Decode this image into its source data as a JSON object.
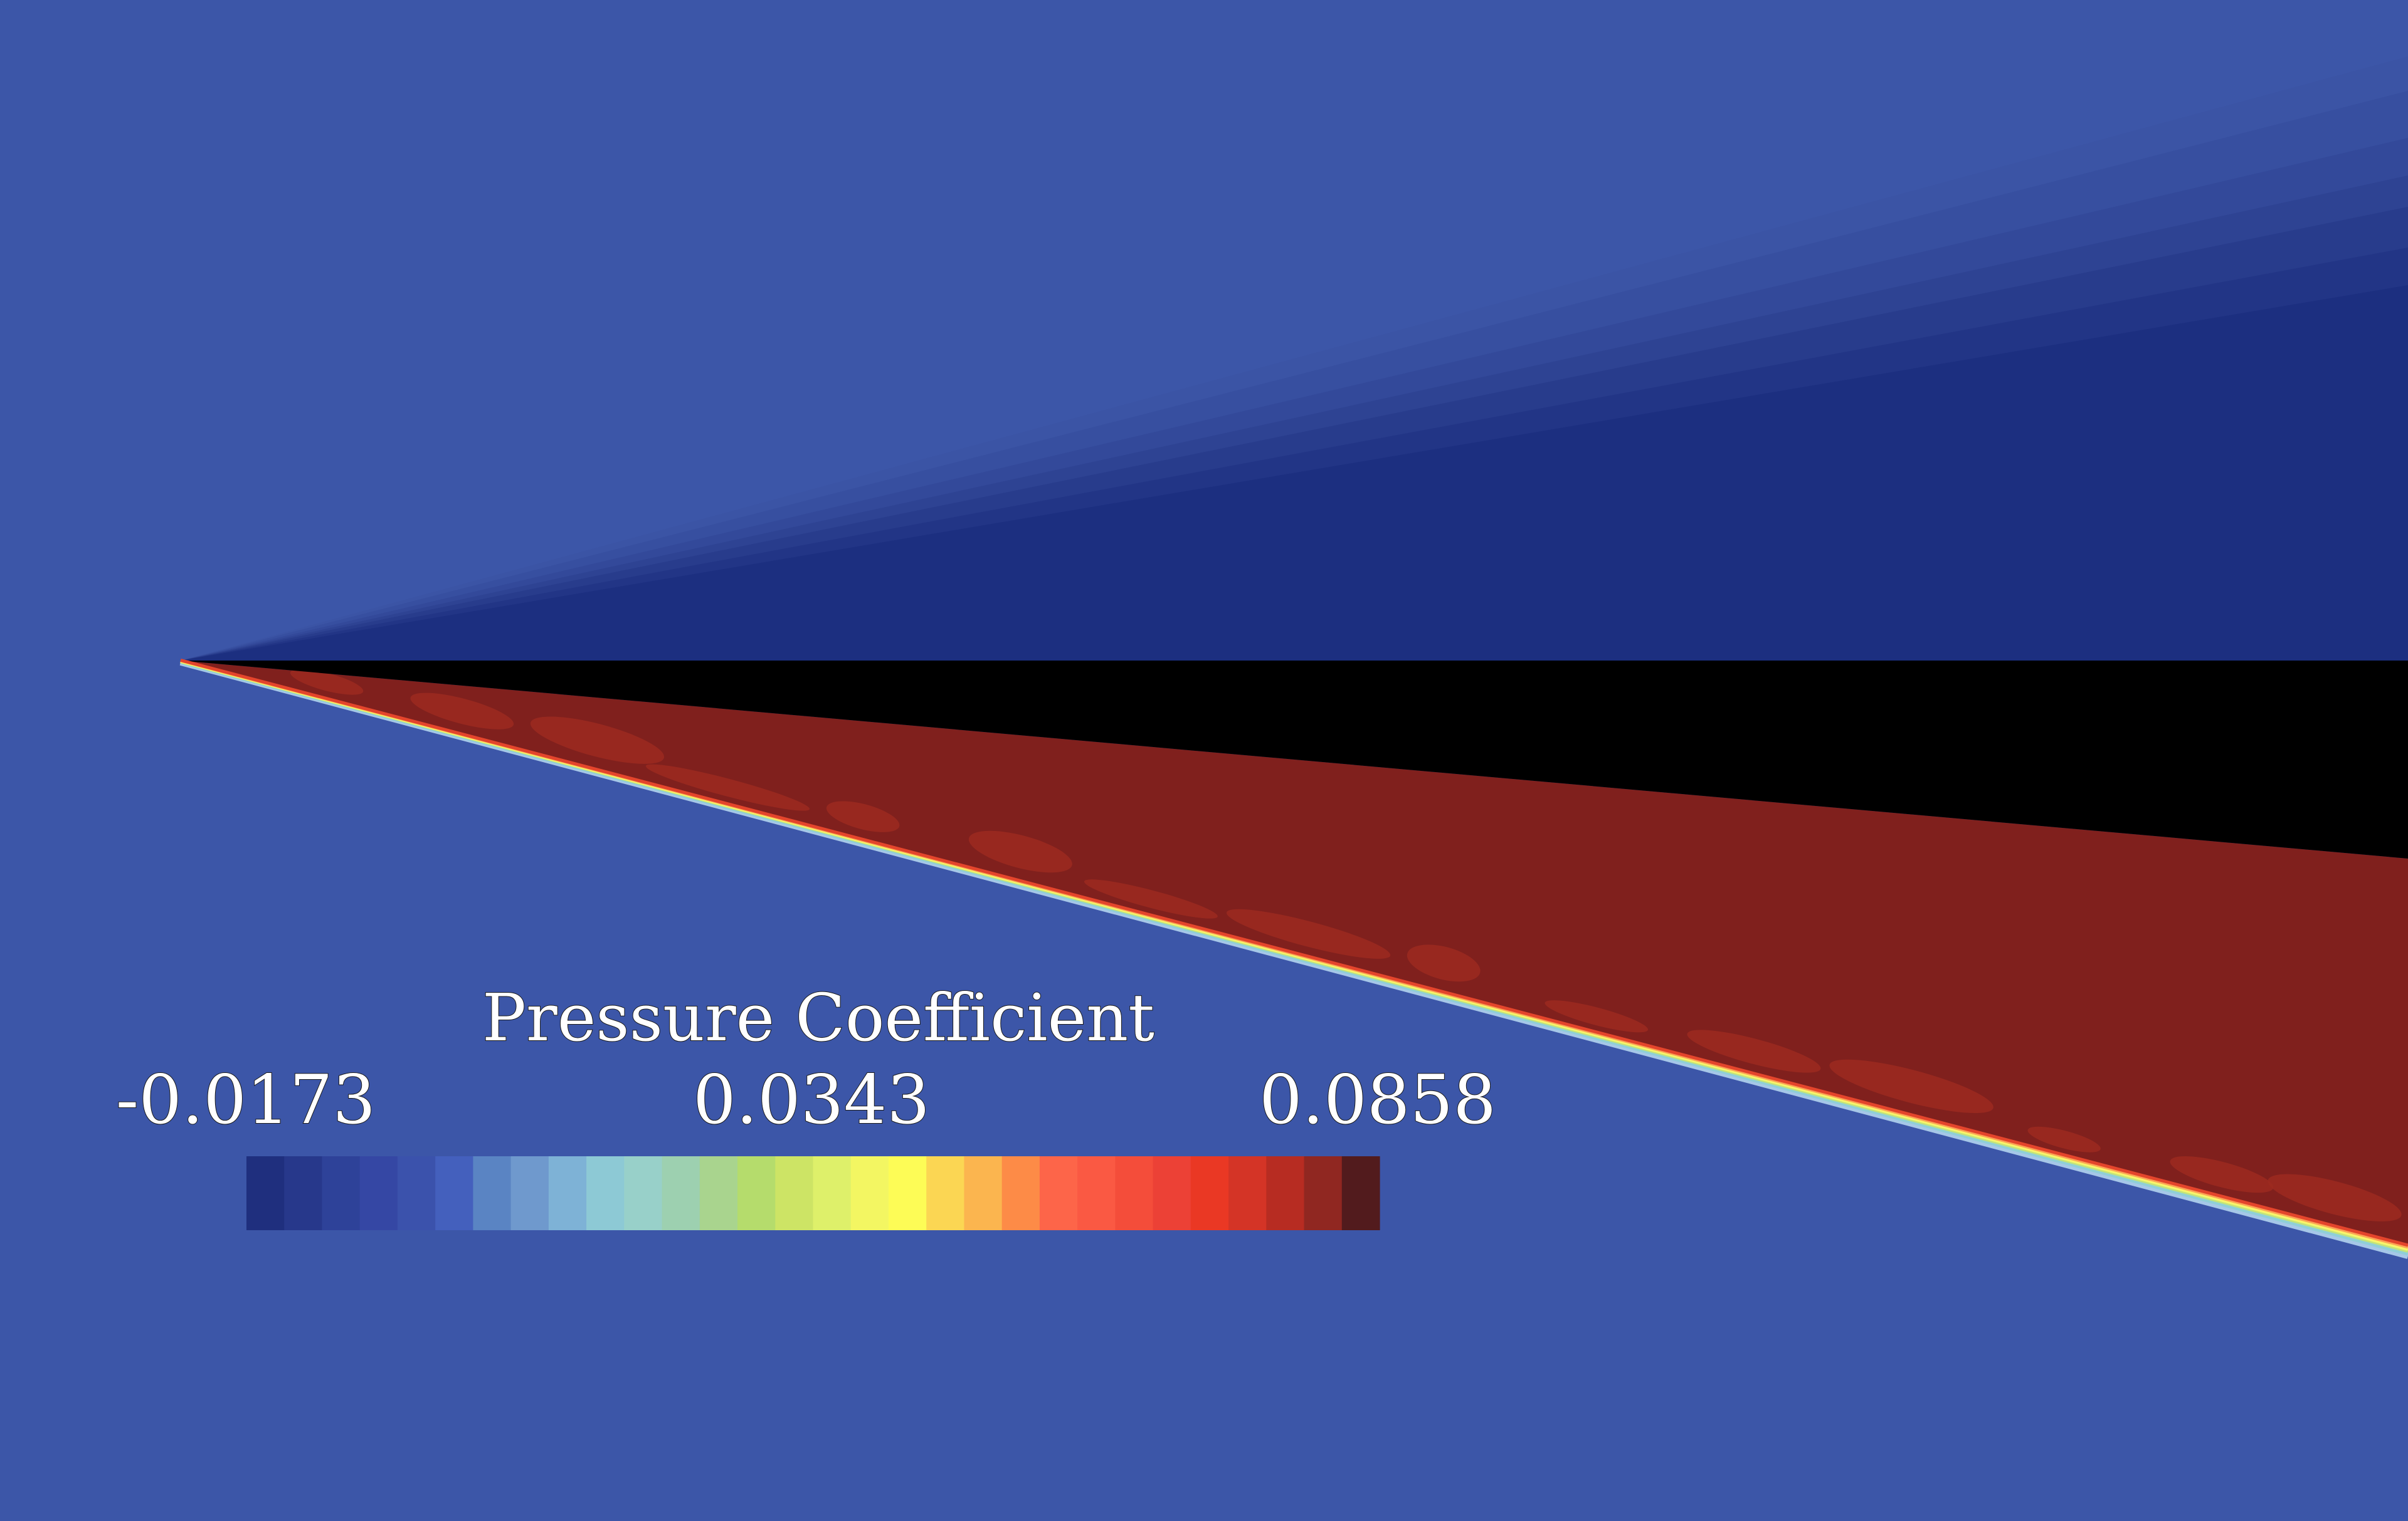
{
  "colorbar": {
    "title": "Pressure Coefficient",
    "min_label": "-0.0173",
    "mid_label": "0.0343",
    "max_label": "0.0858",
    "min": -0.0173,
    "max": 0.0858,
    "colors": [
      "#1f2f7e",
      "#27388b",
      "#2e4299",
      "#3547a4",
      "#3b52ac",
      "#4460bd",
      "#5a84c3",
      "#6f99cd",
      "#7eb2d6",
      "#8dc9d5",
      "#98d0c9",
      "#9dd0b0",
      "#a9d48e",
      "#b5dc6c",
      "#cde465",
      "#def06a",
      "#f3f662",
      "#fdfc56",
      "#fbd653",
      "#fbb54f",
      "#fd8b47",
      "#fd6549",
      "#fa5943",
      "#f44d3a",
      "#ec4136",
      "#ea3824",
      "#d43426",
      "#b72c22",
      "#902721",
      "#521b1d"
    ]
  },
  "field": {
    "freestream_color": "#3c56a8",
    "expansion_colors": [
      "#3b54a5",
      "#374fa0",
      "#33499a",
      "#2e4393",
      "#283c8c",
      "#223586",
      "#1c2f80"
    ],
    "compression_color": "#80201d",
    "body_color": "#000000",
    "shock_colors": [
      "#a6c7e8",
      "#8fcfd8",
      "#c3e47a",
      "#f8f56a",
      "#fca455",
      "#e4452c"
    ]
  }
}
